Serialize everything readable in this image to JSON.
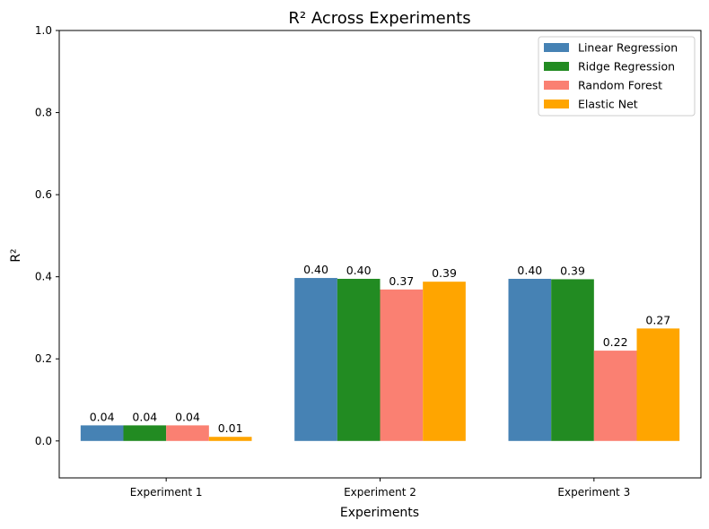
{
  "chart_data": {
    "type": "bar",
    "title": "R² Across Experiments",
    "xlabel": "Experiments",
    "ylabel": "R²",
    "categories": [
      "Experiment 1",
      "Experiment 2",
      "Experiment 3"
    ],
    "ylim": [
      -0.09,
      1.0
    ],
    "yticks": [
      0.0,
      0.2,
      0.4,
      0.6,
      0.8,
      1.0
    ],
    "ytick_labels": [
      "0.0",
      "0.2",
      "0.4",
      "0.6",
      "0.8",
      "1.0"
    ],
    "grid": false,
    "legend_position": "top-right",
    "series": [
      {
        "name": "Linear Regression",
        "color": "#4682b4",
        "values": [
          0.038,
          0.397,
          0.395
        ],
        "labels": [
          "0.04",
          "0.40",
          "0.40"
        ]
      },
      {
        "name": "Ridge Regression",
        "color": "#228b22",
        "values": [
          0.038,
          0.395,
          0.394
        ],
        "labels": [
          "0.04",
          "0.40",
          "0.39"
        ]
      },
      {
        "name": "Random Forest",
        "color": "#fa8072",
        "values": [
          0.038,
          0.369,
          0.22
        ],
        "labels": [
          "0.04",
          "0.37",
          "0.22"
        ]
      },
      {
        "name": "Elastic Net",
        "color": "#ffa500",
        "values": [
          0.01,
          0.388,
          0.274
        ],
        "labels": [
          "0.01",
          "0.39",
          "0.27"
        ]
      }
    ]
  }
}
